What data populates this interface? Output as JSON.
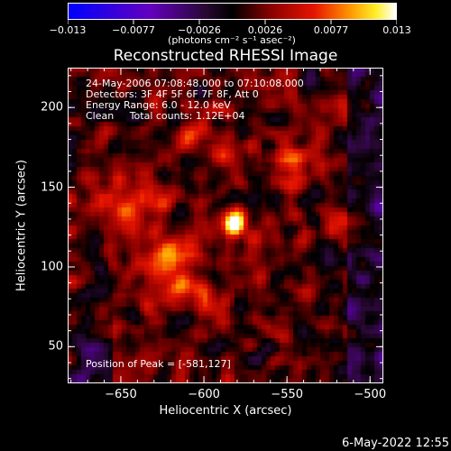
{
  "colorbar": {
    "tick_labels": [
      "−0.013",
      "−0.0077",
      "−0.0026",
      "0.0026",
      "0.0077",
      "0.013"
    ],
    "unit_label": "(photons cm⁻² s⁻¹ asec⁻²)",
    "range": [
      -0.013,
      0.013
    ]
  },
  "chart_data": {
    "type": "heatmap",
    "title": "Reconstructed RHESSI Image",
    "xlabel": "Heliocentric X (arcsec)",
    "ylabel": "Heliocentric Y (arcsec)",
    "xlim": [
      -682,
      -492
    ],
    "ylim": [
      27,
      225
    ],
    "x_ticks": [
      -650,
      -600,
      -550,
      -500
    ],
    "x_tick_labels": [
      "−650",
      "−600",
      "−550",
      "−500"
    ],
    "y_ticks": [
      50,
      100,
      150,
      200
    ],
    "y_tick_labels": [
      "50",
      "100",
      "150",
      "200"
    ],
    "colormap": "rhessi thermal (blue-purple-black-red-orange-yellow-white)",
    "peak": {
      "x": -581,
      "y": 127,
      "value": 0.013
    },
    "secondary_sources": [
      {
        "x": -620,
        "y": 103,
        "value": 0.006
      },
      {
        "x": -645,
        "y": 143,
        "value": 0.004
      },
      {
        "x": -595,
        "y": 180,
        "value": 0.003
      },
      {
        "x": -540,
        "y": 165,
        "value": 0.003
      },
      {
        "x": -600,
        "y": 70,
        "value": 0.003
      }
    ],
    "annotations": [
      "24-May-2006 07:08:48.000 to 07:10:08.000",
      "Detectors: 3F 4F 5F 6F 7F 8F, Att 0",
      "Energy Range: 6.0 - 12.0 keV",
      "Clean     Total counts: 1.12E+04",
      "Position of Peak = [-581,127]"
    ]
  },
  "info": {
    "time_range": "24-May-2006 07:08:48.000 to 07:10:08.000",
    "detectors": "Detectors: 3F 4F 5F 6F 7F 8F, Att 0",
    "energy_range": "Energy Range: 6.0 - 12.0 keV",
    "clean_counts": "Clean     Total counts: 1.12E+04",
    "peak_position": "Position of Peak = [-581,127]"
  },
  "footer": {
    "date": "6-May-2022 12:55"
  }
}
